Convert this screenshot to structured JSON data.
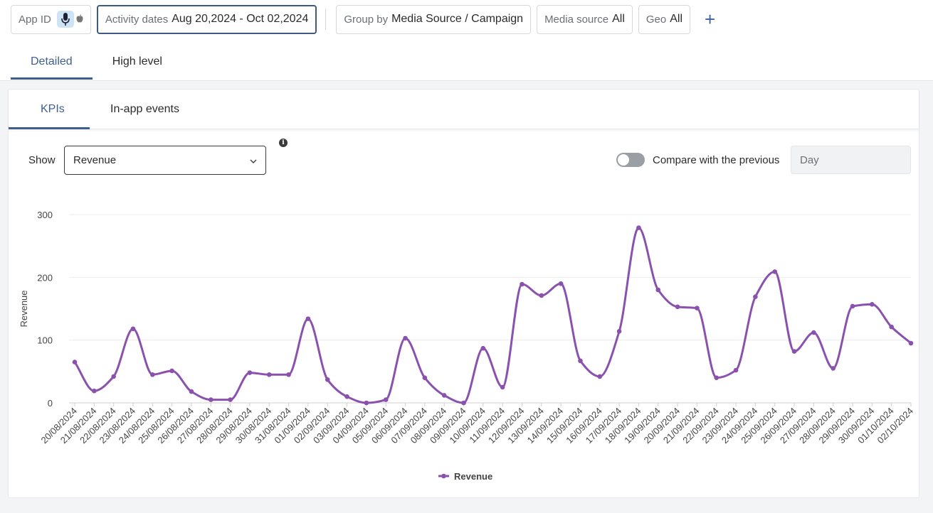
{
  "filters": {
    "app_id_label": "App ID",
    "activity_label": "Activity dates",
    "activity_value": "Aug 20,2024 - Oct 02,2024",
    "group_label": "Group by",
    "group_value": "Media Source / Campaign",
    "media_label": "Media source",
    "media_value": "All",
    "geo_label": "Geo",
    "geo_value": "All",
    "add_symbol": "+"
  },
  "tabs": [
    {
      "label": "Detailed",
      "active": true
    },
    {
      "label": "High level",
      "active": false
    }
  ],
  "card_tabs": [
    {
      "label": "KPIs",
      "active": true
    },
    {
      "label": "In-app events",
      "active": false
    }
  ],
  "controls": {
    "show_label": "Show",
    "metric_value": "Revenue",
    "compare_label": "Compare with the previous",
    "compare_enabled": false,
    "period_value": "Day"
  },
  "colors": {
    "series": "#8a52ad",
    "accent": "#3d5f8f"
  },
  "chart_data": {
    "type": "line",
    "title": "",
    "xlabel": "",
    "ylabel": "Revenue",
    "ylim": [
      0,
      300
    ],
    "yticks": [
      0,
      100,
      200,
      300
    ],
    "grid": true,
    "legend": "bottom-center",
    "categories": [
      "20/08/2024",
      "21/08/2024",
      "22/08/2024",
      "23/08/2024",
      "24/08/2024",
      "25/08/2024",
      "26/08/2024",
      "27/08/2024",
      "28/08/2024",
      "29/08/2024",
      "30/08/2024",
      "31/08/2024",
      "01/09/2024",
      "02/09/2024",
      "03/09/2024",
      "04/09/2024",
      "05/09/2024",
      "06/09/2024",
      "07/09/2024",
      "08/09/2024",
      "09/09/2024",
      "10/09/2024",
      "11/09/2024",
      "12/09/2024",
      "13/09/2024",
      "14/09/2024",
      "15/09/2024",
      "16/09/2024",
      "17/09/2024",
      "18/09/2024",
      "19/09/2024",
      "20/09/2024",
      "21/09/2024",
      "22/09/2024",
      "23/09/2024",
      "24/09/2024",
      "25/09/2024",
      "26/09/2024",
      "27/09/2024",
      "28/09/2024",
      "29/09/2024",
      "30/09/2024",
      "01/10/2024",
      "02/10/2024"
    ],
    "series": [
      {
        "name": "Revenue",
        "values": [
          65,
          19,
          42,
          118,
          45,
          51,
          18,
          5,
          5,
          48,
          45,
          45,
          134,
          37,
          10,
          0,
          5,
          103,
          40,
          12,
          0,
          87,
          25,
          189,
          171,
          190,
          67,
          42,
          114,
          279,
          180,
          153,
          151,
          40,
          52,
          169,
          209,
          82,
          112,
          55,
          154,
          157,
          121,
          95
        ]
      }
    ]
  }
}
